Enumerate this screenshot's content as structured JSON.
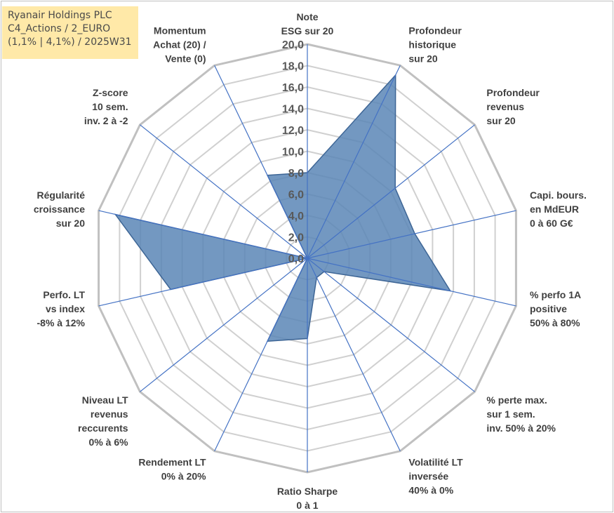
{
  "title_lines": [
    "Ryanair Holdings PLC",
    "C4_Actions / 2_EURO",
    "(1,1% | 4,1%) / 2025W31"
  ],
  "chart_data": {
    "type": "radar",
    "r_range": [
      0,
      20
    ],
    "r_step": 2,
    "tick_labels": [
      "0,0",
      "2,0",
      "4,0",
      "6,0",
      "8,0",
      "10,0",
      "12,0",
      "14,0",
      "16,0",
      "18,0",
      "20,0"
    ],
    "grid": true,
    "axes": [
      {
        "label": [
          "Note",
          "ESG sur 20"
        ],
        "value": 8.0
      },
      {
        "label": [
          "Profondeur",
          "historique",
          "sur 20"
        ],
        "value": 19.0
      },
      {
        "label": [
          "Profondeur",
          "revenus",
          "sur 20"
        ],
        "value": 10.5
      },
      {
        "label": [
          "Capi. bours.",
          "en MdEUR",
          "0 à 60 G€"
        ],
        "value": 10.3
      },
      {
        "label": [
          "% perfo 1A",
          "positive",
          "50% à 80%"
        ],
        "value": 13.7
      },
      {
        "label": [
          "% perte max.",
          "sur 1 sem.",
          "inv. 50% à 20%"
        ],
        "value": 2.0
      },
      {
        "label": [
          "Volatilité LT",
          "inversée",
          "40% à 0%"
        ],
        "value": 2.0
      },
      {
        "label": [
          "Ratio Sharpe",
          "0 à 1"
        ],
        "value": 7.5
      },
      {
        "label": [
          "Rendement LT",
          "0% à 20%"
        ],
        "value": 8.6
      },
      {
        "label": [
          "Niveau LT",
          "revenus",
          "reccurents",
          "0% à 6%"
        ],
        "value": 0.0
      },
      {
        "label": [
          "Perfo. LT",
          "vs index",
          "-8% à 12%"
        ],
        "value": 13.1
      },
      {
        "label": [
          "Régularité",
          "croissance",
          "sur 20"
        ],
        "value": 18.4
      },
      {
        "label": [
          "Z-score",
          "10 sem.",
          "inv. 2 à -2"
        ],
        "value": 0.0
      },
      {
        "label": [
          "Momentum",
          "Achat (20) /",
          "Vente (0)"
        ],
        "value": 8.6
      }
    ],
    "colors": {
      "fill": "#5a86b6",
      "stroke": "#3d6595",
      "spoke": "#4472c4",
      "grid": "#d0d0d0"
    }
  }
}
